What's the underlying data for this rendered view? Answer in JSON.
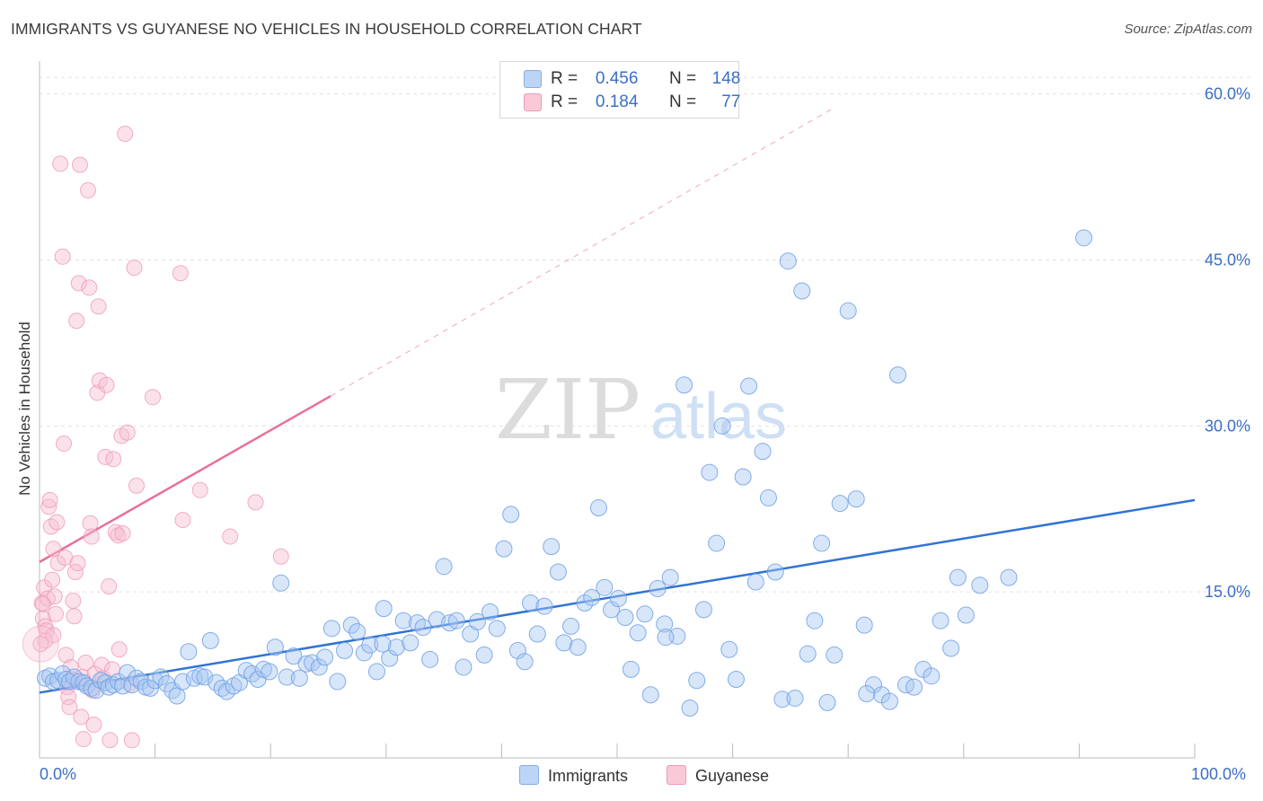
{
  "title": "IMMIGRANTS VS GUYANESE NO VEHICLES IN HOUSEHOLD CORRELATION CHART",
  "source": "Source: ZipAtlas.com",
  "watermark": {
    "zip": "ZIP",
    "atlas": "atlas"
  },
  "legend_top": {
    "rows": [
      {
        "r_label": "R =",
        "r_value": "0.456",
        "n_label": "N =",
        "n_value": "148",
        "color": "#9bbdf0"
      },
      {
        "r_label": "R =",
        "r_value": "0.184",
        "n_label": "N =",
        "n_value": "77",
        "color": "#f5a8c0"
      }
    ]
  },
  "chart_data": {
    "type": "scatter",
    "title": "IMMIGRANTS VS GUYANESE NO VEHICLES IN HOUSEHOLD CORRELATION CHART",
    "xlabel": "",
    "ylabel": "No Vehicles in Household",
    "xlim": [
      0,
      100
    ],
    "ylim": [
      0,
      62
    ],
    "x_tick_labels": [
      "0.0%",
      "100.0%"
    ],
    "y_ticks": [
      15,
      30,
      45,
      60
    ],
    "y_tick_labels": [
      "15.0%",
      "30.0%",
      "45.0%",
      "60.0%"
    ],
    "grid": true,
    "legend_position": "bottom",
    "series": [
      {
        "name": "Immigrants",
        "color": "#6fa0e6",
        "fill": "#a9c8f2",
        "trend": {
          "x": [
            0,
            100
          ],
          "y": [
            5.9,
            23.3
          ]
        },
        "points": [
          [
            0.5,
            7.2
          ],
          [
            0.9,
            7.4
          ],
          [
            1.2,
            6.9
          ],
          [
            1.6,
            7.0
          ],
          [
            2.0,
            7.6
          ],
          [
            2.3,
            7.1
          ],
          [
            2.6,
            6.9
          ],
          [
            3.0,
            7.3
          ],
          [
            3.4,
            6.9
          ],
          [
            3.8,
            6.8
          ],
          [
            4.1,
            6.5
          ],
          [
            4.5,
            6.3
          ],
          [
            4.9,
            6.1
          ],
          [
            5.3,
            7.0
          ],
          [
            5.7,
            6.8
          ],
          [
            6.0,
            6.4
          ],
          [
            6.4,
            6.6
          ],
          [
            6.8,
            6.9
          ],
          [
            7.2,
            6.5
          ],
          [
            7.6,
            7.7
          ],
          [
            8.0,
            6.6
          ],
          [
            8.4,
            7.2
          ],
          [
            8.8,
            6.9
          ],
          [
            9.2,
            6.4
          ],
          [
            9.6,
            6.3
          ],
          [
            10.0,
            7.0
          ],
          [
            10.5,
            7.3
          ],
          [
            11.0,
            6.7
          ],
          [
            11.5,
            6.1
          ],
          [
            11.9,
            5.6
          ],
          [
            12.4,
            6.9
          ],
          [
            12.9,
            9.6
          ],
          [
            13.4,
            7.2
          ],
          [
            13.9,
            7.4
          ],
          [
            14.3,
            7.3
          ],
          [
            14.8,
            10.6
          ],
          [
            15.3,
            6.8
          ],
          [
            15.8,
            6.3
          ],
          [
            16.2,
            6.0
          ],
          [
            16.8,
            6.5
          ],
          [
            17.3,
            6.8
          ],
          [
            17.9,
            7.9
          ],
          [
            18.4,
            7.6
          ],
          [
            18.9,
            7.1
          ],
          [
            19.4,
            8.0
          ],
          [
            19.9,
            7.8
          ],
          [
            20.4,
            10.0
          ],
          [
            20.9,
            15.8
          ],
          [
            21.4,
            7.3
          ],
          [
            22.0,
            9.2
          ],
          [
            22.5,
            7.2
          ],
          [
            23.1,
            8.5
          ],
          [
            23.6,
            8.6
          ],
          [
            24.2,
            8.2
          ],
          [
            24.7,
            9.1
          ],
          [
            25.3,
            11.7
          ],
          [
            25.8,
            6.9
          ],
          [
            26.4,
            9.7
          ],
          [
            27.0,
            12.0
          ],
          [
            27.5,
            11.4
          ],
          [
            28.1,
            9.5
          ],
          [
            28.6,
            10.2
          ],
          [
            29.2,
            7.8
          ],
          [
            29.8,
            13.5
          ],
          [
            30.3,
            9.0
          ],
          [
            30.9,
            10.0
          ],
          [
            31.5,
            12.4
          ],
          [
            32.1,
            10.4
          ],
          [
            32.7,
            12.2
          ],
          [
            33.2,
            11.8
          ],
          [
            33.8,
            8.9
          ],
          [
            34.4,
            12.5
          ],
          [
            35.0,
            17.3
          ],
          [
            35.5,
            12.2
          ],
          [
            36.1,
            12.4
          ],
          [
            36.7,
            8.2
          ],
          [
            37.3,
            11.2
          ],
          [
            37.9,
            12.3
          ],
          [
            38.5,
            9.3
          ],
          [
            39.0,
            13.2
          ],
          [
            39.6,
            11.7
          ],
          [
            40.2,
            18.9
          ],
          [
            40.8,
            22.0
          ],
          [
            41.4,
            9.7
          ],
          [
            42.0,
            8.7
          ],
          [
            42.5,
            14.0
          ],
          [
            43.1,
            11.2
          ],
          [
            43.7,
            13.7
          ],
          [
            44.3,
            19.1
          ],
          [
            44.9,
            16.8
          ],
          [
            45.4,
            10.4
          ],
          [
            46.0,
            11.9
          ],
          [
            46.6,
            10.0
          ],
          [
            47.2,
            14.0
          ],
          [
            47.8,
            14.5
          ],
          [
            48.4,
            22.6
          ],
          [
            48.9,
            15.4
          ],
          [
            49.5,
            13.4
          ],
          [
            50.1,
            14.4
          ],
          [
            50.7,
            12.7
          ],
          [
            51.2,
            8.0
          ],
          [
            51.8,
            11.3
          ],
          [
            52.4,
            13.0
          ],
          [
            52.9,
            5.7
          ],
          [
            53.5,
            15.3
          ],
          [
            54.1,
            12.1
          ],
          [
            54.6,
            16.3
          ],
          [
            55.2,
            11.0
          ],
          [
            55.8,
            33.7
          ],
          [
            56.3,
            4.5
          ],
          [
            56.9,
            7.0
          ],
          [
            57.5,
            13.4
          ],
          [
            58.0,
            25.8
          ],
          [
            58.6,
            19.4
          ],
          [
            59.1,
            30.0
          ],
          [
            59.7,
            9.8
          ],
          [
            60.3,
            7.1
          ],
          [
            60.9,
            25.4
          ],
          [
            61.4,
            33.6
          ],
          [
            62.0,
            15.9
          ],
          [
            62.6,
            27.7
          ],
          [
            63.1,
            23.5
          ],
          [
            63.7,
            16.8
          ],
          [
            64.3,
            5.3
          ],
          [
            64.8,
            44.9
          ],
          [
            65.4,
            5.4
          ],
          [
            66.0,
            42.2
          ],
          [
            66.5,
            9.4
          ],
          [
            67.1,
            12.4
          ],
          [
            67.7,
            19.4
          ],
          [
            68.2,
            5.0
          ],
          [
            68.8,
            9.3
          ],
          [
            69.3,
            23.0
          ],
          [
            70.0,
            40.4
          ],
          [
            70.7,
            23.4
          ],
          [
            71.4,
            12.0
          ],
          [
            72.2,
            6.6
          ],
          [
            72.9,
            5.7
          ],
          [
            73.6,
            5.1
          ],
          [
            74.3,
            34.6
          ],
          [
            75.0,
            6.6
          ],
          [
            75.7,
            6.4
          ],
          [
            76.5,
            8.0
          ],
          [
            77.2,
            7.4
          ],
          [
            78.0,
            12.4
          ],
          [
            78.9,
            9.9
          ],
          [
            79.5,
            16.3
          ],
          [
            80.2,
            12.9
          ],
          [
            81.4,
            15.6
          ],
          [
            83.9,
            16.3
          ],
          [
            90.4,
            47.0
          ],
          [
            71.6,
            5.8
          ],
          [
            54.2,
            10.9
          ],
          [
            29.7,
            10.3
          ]
        ]
      },
      {
        "name": "Guyanese",
        "color": "#f09ab6",
        "fill": "#f7bfd0",
        "trend": {
          "x": [
            0,
            25.2
          ],
          "y": [
            17.7,
            32.7
          ]
        },
        "trend_dashed_extension": {
          "x": [
            25.2,
            68.7
          ],
          "y": [
            32.7,
            58.7
          ]
        },
        "points": [
          [
            0.2,
            14.0
          ],
          [
            0.3,
            12.6
          ],
          [
            0.4,
            15.4
          ],
          [
            0.5,
            11.9
          ],
          [
            0.6,
            11.5
          ],
          [
            0.7,
            14.4
          ],
          [
            0.8,
            22.7
          ],
          [
            0.9,
            23.3
          ],
          [
            1.0,
            20.9
          ],
          [
            1.1,
            16.1
          ],
          [
            1.2,
            18.9
          ],
          [
            1.3,
            14.6
          ],
          [
            1.4,
            13.0
          ],
          [
            1.5,
            21.3
          ],
          [
            1.6,
            17.6
          ],
          [
            1.8,
            53.7
          ],
          [
            2.0,
            45.3
          ],
          [
            2.1,
            28.4
          ],
          [
            2.2,
            18.1
          ],
          [
            2.3,
            9.3
          ],
          [
            2.4,
            6.4
          ],
          [
            2.5,
            5.5
          ],
          [
            2.6,
            4.6
          ],
          [
            2.7,
            8.2
          ],
          [
            2.8,
            7.1
          ],
          [
            3.0,
            12.8
          ],
          [
            3.1,
            16.8
          ],
          [
            3.2,
            39.5
          ],
          [
            3.3,
            17.6
          ],
          [
            3.4,
            42.9
          ],
          [
            3.5,
            53.6
          ],
          [
            3.6,
            3.7
          ],
          [
            3.7,
            7.3
          ],
          [
            3.8,
            1.7
          ],
          [
            3.9,
            6.8
          ],
          [
            4.0,
            8.6
          ],
          [
            4.2,
            51.3
          ],
          [
            4.3,
            42.5
          ],
          [
            4.4,
            21.2
          ],
          [
            4.5,
            20.0
          ],
          [
            4.6,
            6.1
          ],
          [
            4.7,
            3.0
          ],
          [
            4.8,
            7.6
          ],
          [
            5.0,
            33.0
          ],
          [
            5.1,
            40.8
          ],
          [
            5.2,
            34.1
          ],
          [
            5.4,
            8.4
          ],
          [
            5.5,
            7.2
          ],
          [
            5.7,
            27.2
          ],
          [
            5.8,
            33.7
          ],
          [
            6.0,
            15.5
          ],
          [
            6.1,
            1.6
          ],
          [
            6.3,
            8.0
          ],
          [
            6.4,
            27.0
          ],
          [
            6.6,
            20.4
          ],
          [
            6.8,
            20.1
          ],
          [
            6.9,
            9.8
          ],
          [
            7.1,
            29.1
          ],
          [
            7.2,
            20.3
          ],
          [
            7.4,
            56.4
          ],
          [
            7.6,
            29.4
          ],
          [
            7.8,
            6.7
          ],
          [
            8.0,
            1.6
          ],
          [
            8.2,
            44.3
          ],
          [
            8.4,
            24.6
          ],
          [
            9.8,
            32.6
          ],
          [
            12.2,
            43.8
          ],
          [
            12.4,
            21.5
          ],
          [
            13.9,
            24.2
          ],
          [
            16.5,
            20.0
          ],
          [
            18.7,
            23.1
          ],
          [
            20.9,
            18.2
          ],
          [
            0.5,
            10.6
          ],
          [
            1.2,
            11.1
          ],
          [
            2.9,
            14.2
          ],
          [
            0.1,
            10.3
          ],
          [
            0.3,
            13.9
          ]
        ]
      }
    ]
  },
  "legend_bottom": [
    {
      "label": "Immigrants",
      "color": "#9bbdf0"
    },
    {
      "label": "Guyanese",
      "color": "#f5a8c0"
    }
  ]
}
